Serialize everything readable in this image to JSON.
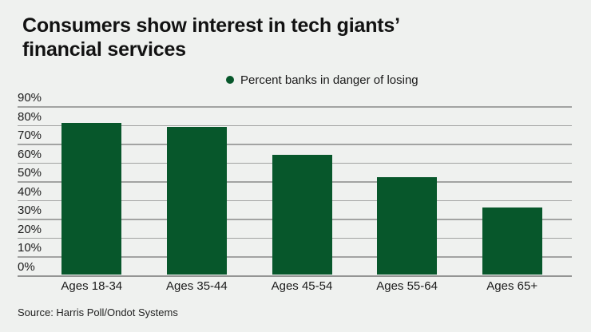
{
  "page": {
    "background_color": "#eff1ef"
  },
  "header": {
    "title_lines": [
      "Consumers show interest in tech giants’",
      "financial services"
    ]
  },
  "legend": {
    "label": "Percent banks in danger of losing",
    "marker_color": "#07572b"
  },
  "chart_data": {
    "type": "bar",
    "title": "Consumers show interest in tech giants’ financial services",
    "legend": "Percent banks in danger of losing",
    "legend_position": "top-center",
    "categories": [
      "Ages 18-34",
      "Ages 35-44",
      "Ages 45-54",
      "Ages 55-64",
      "Ages 65+"
    ],
    "values": [
      81,
      79,
      64,
      52,
      36
    ],
    "unit": "%",
    "xlabel": "",
    "ylabel": "",
    "ylim": [
      0,
      90
    ],
    "ytick_step": 10,
    "yticks": [
      "90%",
      "80%",
      "70%",
      "60%",
      "50%",
      "40%",
      "30%",
      "20%",
      "10%",
      "0%"
    ],
    "grid": true,
    "bar_color": "#07572b",
    "gridline_color": "#a2a3a2",
    "background_color": "#eff1ef",
    "source": "Source: Harris Poll/Ondot Systems"
  },
  "footer": {
    "source": "Source: Harris Poll/Ondot Systems"
  }
}
